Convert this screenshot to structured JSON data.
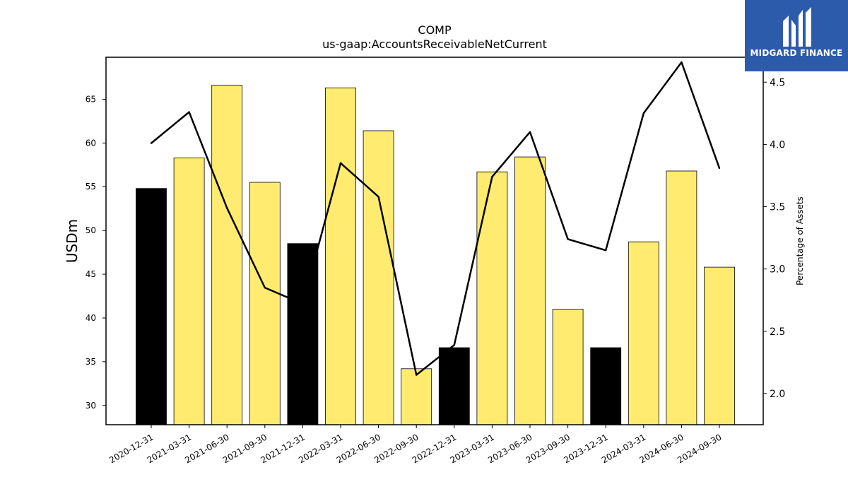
{
  "chart_data": {
    "type": "bar",
    "title": "COMP",
    "subtitle": "us-gaap:AccountsReceivableNetCurrent",
    "ylabel": "USDm",
    "ylabel_right": "Percentage of Assets",
    "categories": [
      "2020-12-31",
      "2021-03-31",
      "2021-06-30",
      "2021-09-30",
      "2021-12-31",
      "2022-03-31",
      "2022-06-30",
      "2022-09-30",
      "2022-12-31",
      "2023-03-31",
      "2023-06-30",
      "2023-09-30",
      "2023-12-31",
      "2024-03-31",
      "2024-06-30",
      "2024-09-30"
    ],
    "series": [
      {
        "type": "bar",
        "axis": "left",
        "values": [
          54.8,
          58.3,
          66.6,
          55.5,
          48.5,
          66.3,
          61.4,
          34.2,
          36.6,
          56.7,
          58.4,
          41.0,
          36.6,
          48.7,
          56.8,
          45.8
        ],
        "colors": [
          "#000000",
          "#ffeb70",
          "#ffeb70",
          "#ffeb70",
          "#000000",
          "#ffeb70",
          "#ffeb70",
          "#ffeb70",
          "#000000",
          "#ffeb70",
          "#ffeb70",
          "#ffeb70",
          "#000000",
          "#ffeb70",
          "#ffeb70",
          "#ffeb70"
        ]
      },
      {
        "type": "line",
        "axis": "right",
        "color": "#000000",
        "values": [
          4.01,
          4.26,
          3.49,
          2.85,
          2.72,
          3.85,
          3.58,
          2.15,
          2.39,
          3.74,
          4.1,
          3.24,
          3.15,
          4.25,
          4.66,
          3.81
        ]
      }
    ],
    "ylim": [
      27.8,
      69.8
    ],
    "ylim_right": [
      1.75,
      4.7
    ],
    "yticks": [
      30,
      35,
      40,
      45,
      50,
      55,
      60,
      65
    ],
    "yticks_right": [
      2.0,
      2.5,
      3.0,
      3.5,
      4.0,
      4.5
    ],
    "grid": false,
    "legend": "none"
  },
  "logo": {
    "text": "MIDGARD FINANCE",
    "color": "#2d5bab"
  }
}
